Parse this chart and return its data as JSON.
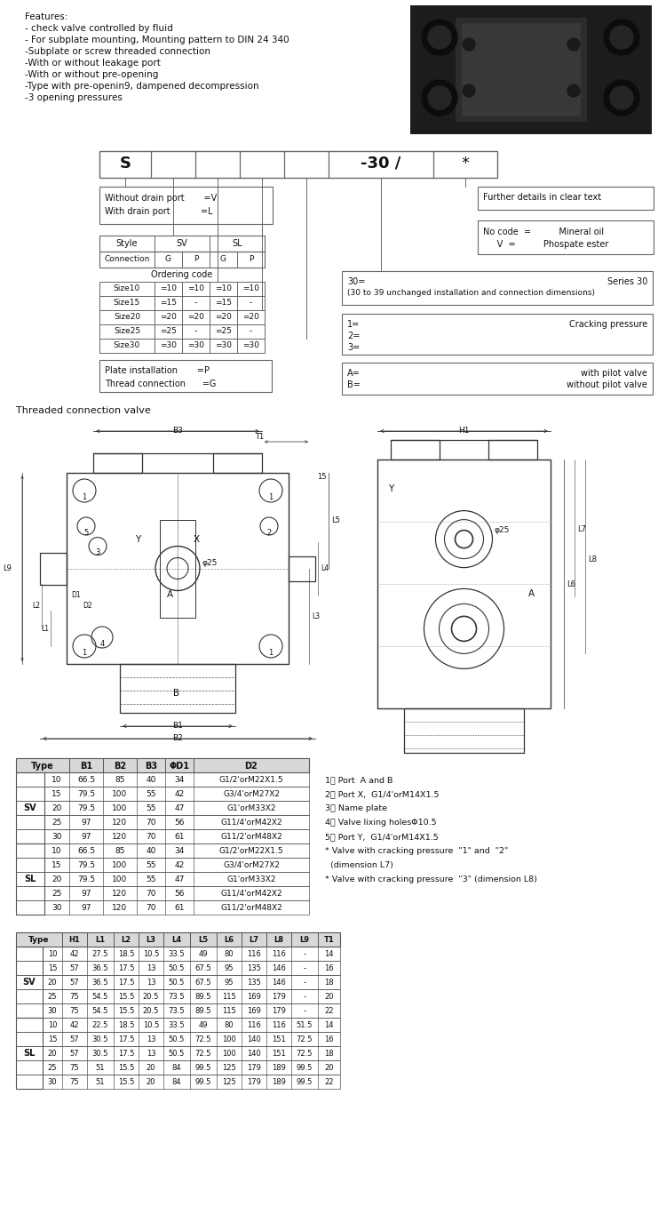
{
  "bg_color": "#ffffff",
  "features_title": "Features:",
  "features": [
    "- check valve controlled by fluid",
    "- For subplate mounting, Mounting pattern to DIN 24 340",
    "-Subplate or screw threaded connection",
    "-With or without leakage port",
    "-With or without pre-opening",
    "-Type with pre-openin9, dampened decompression",
    "-3 opening pressures"
  ],
  "model_code_cells": [
    "S",
    "",
    "",
    "",
    "",
    "-30 /",
    "*"
  ],
  "model_cell_widths": [
    58,
    50,
    50,
    50,
    50,
    118,
    72
  ],
  "drain_lines": [
    "Without drain port       =V",
    "With drain port           =L"
  ],
  "further_details_text": "Further details in clear text",
  "fluid_lines": [
    "No code  =          Mineral oil",
    "     V  =          Phospate ester"
  ],
  "series30_lines": [
    "30=",
    "Series 30",
    "(30 to 39 unchanged installation and connection dimensions)"
  ],
  "cracking_lines": [
    "1=",
    "Cracking pressure",
    "2=",
    "3="
  ],
  "style_hdr1_labels": [
    "Style",
    "SV",
    "SL"
  ],
  "style_hdr2_labels": [
    "Connection",
    "G",
    "P",
    "G",
    "P"
  ],
  "ordering_label": "Ordering code",
  "ordering_rows": [
    [
      "Size10",
      "=10",
      "=10",
      "=10",
      "=10"
    ],
    [
      "Size15",
      "=15",
      "-",
      "=15",
      "-"
    ],
    [
      "Size20",
      "=20",
      "=20",
      "=20",
      "=20"
    ],
    [
      "Size25",
      "=25",
      "-",
      "=25",
      "-"
    ],
    [
      "Size30",
      "=30",
      "=30",
      "=30",
      "=30"
    ]
  ],
  "plate_thread_lines": [
    "Plate installation       =P",
    "Thread connection      =G"
  ],
  "pilot_lines": [
    "A=",
    "with pilot valve",
    "B=",
    "without pilot valve"
  ],
  "threaded_label": "Threaded connection valve",
  "notes": [
    "1、 Port  A and B",
    "2、 Port X,  G1/4'orM14X1.5",
    "3、 Name plate",
    "4、 Valve lixing holesΦ10.5",
    "5、 Port Y,  G1/4'orM14X1.5",
    "* Valve with cracking pressure  \"1\" and  \"2\"",
    "  (dimension L7)",
    "* Valve with cracking pressure  \"3\" (dimension L8)"
  ],
  "dim_table1_headers": [
    "Type",
    "B1",
    "B2",
    "B3",
    "ΦD1",
    "D2"
  ],
  "dim_table1_sv_rows": [
    [
      "10",
      "66.5",
      "85",
      "40",
      "34",
      "G1/2'orM22X1.5"
    ],
    [
      "15",
      "79.5",
      "100",
      "55",
      "42",
      "G3/4'orM27X2"
    ],
    [
      "20",
      "79.5",
      "100",
      "55",
      "47",
      "G1'orM33X2"
    ],
    [
      "25",
      "97",
      "120",
      "70",
      "56",
      "G11/4'orM42X2"
    ],
    [
      "30",
      "97",
      "120",
      "70",
      "61",
      "G11/2'orM48X2"
    ]
  ],
  "dim_table1_sl_rows": [
    [
      "10",
      "66.5",
      "85",
      "40",
      "34",
      "G1/2'orM22X1.5"
    ],
    [
      "15",
      "79.5",
      "100",
      "55",
      "42",
      "G3/4'orM27X2"
    ],
    [
      "20",
      "79.5",
      "100",
      "55",
      "47",
      "G1'orM33X2"
    ],
    [
      "25",
      "97",
      "120",
      "70",
      "56",
      "G11/4'orM42X2"
    ],
    [
      "30",
      "97",
      "120",
      "70",
      "61",
      "G11/2'orM48X2"
    ]
  ],
  "dim_table2_headers": [
    "Type",
    "H1",
    "L1",
    "L2",
    "L3",
    "L4",
    "L5",
    "L6",
    "L7",
    "L8",
    "L9",
    "T1"
  ],
  "dim_table2_sv_rows": [
    [
      "10",
      "42",
      "27.5",
      "18.5",
      "10.5",
      "33.5",
      "49",
      "80",
      "116",
      "116",
      "-",
      "14"
    ],
    [
      "15",
      "57",
      "36.5",
      "17.5",
      "13",
      "50.5",
      "67.5",
      "95",
      "135",
      "146",
      "-",
      "16"
    ],
    [
      "20",
      "57",
      "36.5",
      "17.5",
      "13",
      "50.5",
      "67.5",
      "95",
      "135",
      "146",
      "-",
      "18"
    ],
    [
      "25",
      "75",
      "54.5",
      "15.5",
      "20.5",
      "73.5",
      "89.5",
      "115",
      "169",
      "179",
      "-",
      "20"
    ],
    [
      "30",
      "75",
      "54.5",
      "15.5",
      "20.5",
      "73.5",
      "89.5",
      "115",
      "169",
      "179",
      "-",
      "22"
    ]
  ],
  "dim_table2_sl_rows": [
    [
      "10",
      "42",
      "22.5",
      "18.5",
      "10.5",
      "33.5",
      "49",
      "80",
      "116",
      "116",
      "51.5",
      "14"
    ],
    [
      "15",
      "57",
      "30.5",
      "17.5",
      "13",
      "50.5",
      "72.5",
      "100",
      "140",
      "151",
      "72.5",
      "16"
    ],
    [
      "20",
      "57",
      "30.5",
      "17.5",
      "13",
      "50.5",
      "72.5",
      "100",
      "140",
      "151",
      "72.5",
      "18"
    ],
    [
      "25",
      "75",
      "51",
      "15.5",
      "20",
      "84",
      "99.5",
      "125",
      "179",
      "189",
      "99.5",
      "20"
    ],
    [
      "30",
      "75",
      "51",
      "15.5",
      "20",
      "84",
      "99.5",
      "125",
      "179",
      "189",
      "99.5",
      "22"
    ]
  ]
}
